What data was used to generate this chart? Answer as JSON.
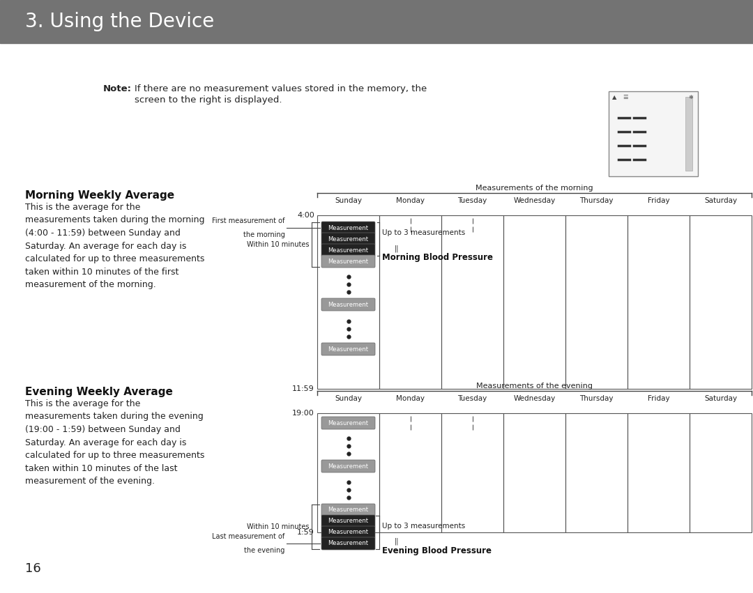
{
  "title": "3. Using the Device",
  "title_bg": "#737373",
  "title_color": "#ffffff",
  "title_fontsize": 20,
  "bg_color": "#ffffff",
  "morning_heading": "Morning Weekly Average",
  "morning_body": "This is the average for the\nmeasurements taken during the morning\n(4:00 - 11:59) between Sunday and\nSaturday. An average for each day is\ncalculated for up to three measurements\ntaken within 10 minutes of the first\nmeasurement of the morning.",
  "evening_heading": "Evening Weekly Average",
  "evening_body": "This is the average for the\nmeasurements taken during the evening\n(19:00 - 1:59) between Sunday and\nSaturday. An average for each day is\ncalculated for up to three measurements\ntaken within 10 minutes of the last\nmeasurement of the evening.",
  "page_number": "16",
  "days": [
    "Sunday",
    "Monday",
    "Tuesday",
    "Wednesday",
    "Thursday",
    "Friday",
    "Saturday"
  ],
  "morning_label": "Measurements of the morning",
  "evening_label": "Measurements of the evening",
  "morning_time_top": "4:00",
  "morning_time_bot": "11:59",
  "evening_time_top": "19:00",
  "evening_time_bot": "1:59",
  "meas_dark_color": "#222222",
  "meas_light_color": "#999999",
  "meas_text_color": "#ffffff",
  "bracket_color": "#444444",
  "grid_color": "#555555",
  "text_color": "#222222"
}
